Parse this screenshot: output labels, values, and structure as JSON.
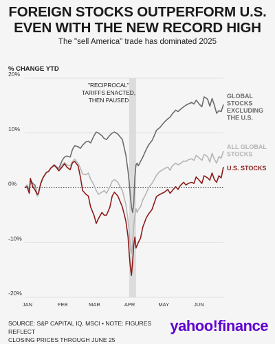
{
  "header": {
    "title_line1": "FOREIGN STOCKS OUTPERFORM U.S.",
    "title_line2": "EVEN WITH THE NEW RECORD HIGH",
    "subtitle": "The \"sell America\" trade has dominated 2025"
  },
  "footer": {
    "source_line1": "SOURCE: S&P CAPITAL IQ, MSCI • NOTE: FIGURES REFLECT",
    "source_line2": "CLOSING PRICES THROUGH JUNE 25",
    "logo": "yahoo!finance"
  },
  "colors": {
    "global_ex_us": "#6b6b6b",
    "all_global": "#b5b5b5",
    "us": "#8b1a1a",
    "band": "#dcdcdc",
    "grid": "#d8d8d8"
  },
  "chart_data": {
    "type": "line",
    "title": "FOREIGN STOCKS OUTPERFORM U.S. EVEN WITH THE NEW RECORD HIGH",
    "subtitle": "The \"sell America\" trade has dominated 2025",
    "ylabel": "% CHANGE YTD",
    "xlabel": "",
    "ylim": [
      -20,
      20
    ],
    "yticks": [
      20,
      10,
      0,
      -10,
      -20
    ],
    "ytick_labels": [
      "20%",
      "10%",
      "0%",
      "-10%",
      "-20%"
    ],
    "xlim": [
      1,
      176
    ],
    "xticks": [
      1,
      32,
      60,
      91,
      121,
      152
    ],
    "xtick_labels": [
      "JAN",
      "FEB",
      "MAR",
      "APR",
      "MAY",
      "JUN"
    ],
    "grid": true,
    "zero_line": "dotted",
    "annotation": {
      "lines": [
        "\"RECIPROCAL\"",
        "TARIFFS ENACTED,",
        "THEN PAUSED"
      ],
      "band_x": [
        93,
        99
      ]
    },
    "series": [
      {
        "name": "GLOBAL STOCKS EXCLUDING THE U.S.",
        "label_lines": [
          "GLOBAL",
          "STOCKS",
          "EXCLUDING",
          "THE U.S."
        ],
        "x": [
          1,
          3,
          5,
          6,
          8,
          10,
          12,
          13,
          15,
          17,
          20,
          22,
          24,
          27,
          29,
          31,
          34,
          36,
          38,
          41,
          43,
          45,
          48,
          50,
          52,
          55,
          57,
          59,
          62,
          64,
          66,
          69,
          71,
          73,
          76,
          78,
          80,
          83,
          85,
          87,
          90,
          92,
          93,
          94,
          95,
          96,
          97,
          98,
          99,
          100,
          101,
          103,
          105,
          108,
          110,
          113,
          115,
          117,
          120,
          122,
          124,
          127,
          129,
          131,
          134,
          136,
          138,
          141,
          143,
          145,
          148,
          150,
          152,
          155,
          157,
          159,
          162,
          164,
          166,
          168,
          170,
          172,
          174,
          176
        ],
        "y": [
          0,
          0.5,
          -0.5,
          1.5,
          0.8,
          0.5,
          -1.5,
          -1.3,
          0.8,
          1.8,
          2.8,
          3,
          3.6,
          4.2,
          3.8,
          3.5,
          5,
          5.6,
          5.8,
          5.6,
          7,
          7.7,
          7.5,
          7.2,
          7.8,
          8.4,
          8.5,
          8.2,
          9.5,
          10.2,
          10,
          9.5,
          9,
          8.8,
          9.6,
          10,
          10.2,
          9.8,
          9.3,
          8.8,
          6,
          3,
          1,
          -1.5,
          -3.5,
          -4.5,
          -3,
          2,
          4.2,
          4.5,
          4,
          4.8,
          5.6,
          7,
          7.8,
          8.6,
          9.5,
          10.5,
          11,
          11.5,
          12,
          12.6,
          12.9,
          13.5,
          14.2,
          13.9,
          14.3,
          14.8,
          15.1,
          15.3,
          15.6,
          15.3,
          16,
          15.2,
          14.8,
          16.6,
          16.2,
          14.9,
          16.3,
          15.1,
          13.6,
          14.1,
          13.9,
          15.2
        ]
      },
      {
        "name": "ALL GLOBAL STOCKS",
        "label_lines": [
          "ALL GLOBAL",
          "STOCKS"
        ],
        "x": [
          1,
          3,
          5,
          6,
          8,
          10,
          12,
          13,
          15,
          17,
          20,
          22,
          24,
          27,
          29,
          31,
          34,
          36,
          38,
          41,
          43,
          45,
          48,
          50,
          52,
          55,
          57,
          59,
          62,
          64,
          66,
          69,
          71,
          73,
          76,
          78,
          80,
          83,
          85,
          87,
          90,
          92,
          93,
          94,
          95,
          96,
          97,
          98,
          99,
          100,
          101,
          103,
          105,
          108,
          110,
          113,
          115,
          117,
          120,
          122,
          124,
          127,
          129,
          131,
          134,
          136,
          138,
          141,
          143,
          145,
          148,
          150,
          152,
          155,
          157,
          159,
          162,
          164,
          166,
          168,
          170,
          172,
          174,
          176
        ],
        "y": [
          0,
          0.4,
          -0.8,
          1.2,
          0.4,
          0,
          -1.5,
          -1.3,
          0.8,
          1.8,
          2.8,
          3,
          3.6,
          4.1,
          3.7,
          3.3,
          4.2,
          4.6,
          4.2,
          4,
          4.8,
          5.2,
          4.5,
          3.6,
          2.5,
          2.4,
          2.7,
          1.6,
          0.5,
          -0.5,
          -1.2,
          -0.8,
          -0.5,
          -1,
          0.2,
          1.2,
          1.5,
          1,
          0.2,
          -0.5,
          -3,
          -6,
          -8,
          -11,
          -12,
          -10,
          -7,
          -5,
          -3.8,
          -4.5,
          -4,
          -3.5,
          -2.2,
          -1,
          0,
          0.8,
          1.5,
          2.3,
          3,
          3.2,
          3.5,
          3.8,
          3.2,
          4,
          4.5,
          4.2,
          4.4,
          4.9,
          4.8,
          5.1,
          5.3,
          5,
          5.9,
          5.4,
          5,
          6.1,
          5.7,
          4.7,
          6.3,
          5.2,
          4.5,
          5.7,
          5.4,
          6.7
        ]
      },
      {
        "name": "U.S. STOCKS",
        "label_lines": [
          "U.S. STOCKS"
        ],
        "x": [
          1,
          3,
          5,
          6,
          8,
          10,
          12,
          13,
          15,
          17,
          20,
          22,
          24,
          27,
          29,
          31,
          34,
          36,
          38,
          41,
          43,
          45,
          48,
          50,
          52,
          55,
          57,
          59,
          62,
          64,
          66,
          69,
          71,
          73,
          76,
          78,
          80,
          83,
          85,
          87,
          90,
          92,
          93,
          94,
          95,
          96,
          97,
          98,
          99,
          100,
          101,
          103,
          105,
          108,
          110,
          113,
          115,
          117,
          120,
          122,
          124,
          127,
          129,
          131,
          134,
          136,
          138,
          141,
          143,
          145,
          148,
          150,
          152,
          155,
          157,
          159,
          162,
          164,
          166,
          168,
          170,
          172,
          174,
          176
        ],
        "y": [
          0,
          0.2,
          -1,
          1.7,
          0.2,
          -0.4,
          -1.2,
          -1,
          0.7,
          1.8,
          2.8,
          3,
          3.6,
          4.1,
          3.7,
          3.1,
          3.8,
          4.4,
          3.8,
          3.3,
          4.6,
          4.8,
          4,
          2,
          -0.5,
          -1.2,
          -1.5,
          -3.5,
          -5,
          -6.5,
          -5.6,
          -4.5,
          -5,
          -5,
          -3.5,
          -1.5,
          -0.8,
          -1.5,
          -2.5,
          -3.5,
          -6,
          -9,
          -12,
          -14.5,
          -16,
          -13.5,
          -10.5,
          -9,
          -11,
          -10.5,
          -10,
          -9.2,
          -7.2,
          -5.5,
          -4.8,
          -4,
          -2.8,
          -1.6,
          -1.2,
          -1,
          -0.8,
          -0.3,
          -1,
          -0.5,
          0.2,
          -0.3,
          0.4,
          1,
          0.5,
          0.8,
          1,
          0.8,
          2,
          1.3,
          0.8,
          2.2,
          1.8,
          1.4,
          2.7,
          1.5,
          1,
          2.2,
          1.8,
          3.8
        ]
      }
    ]
  }
}
